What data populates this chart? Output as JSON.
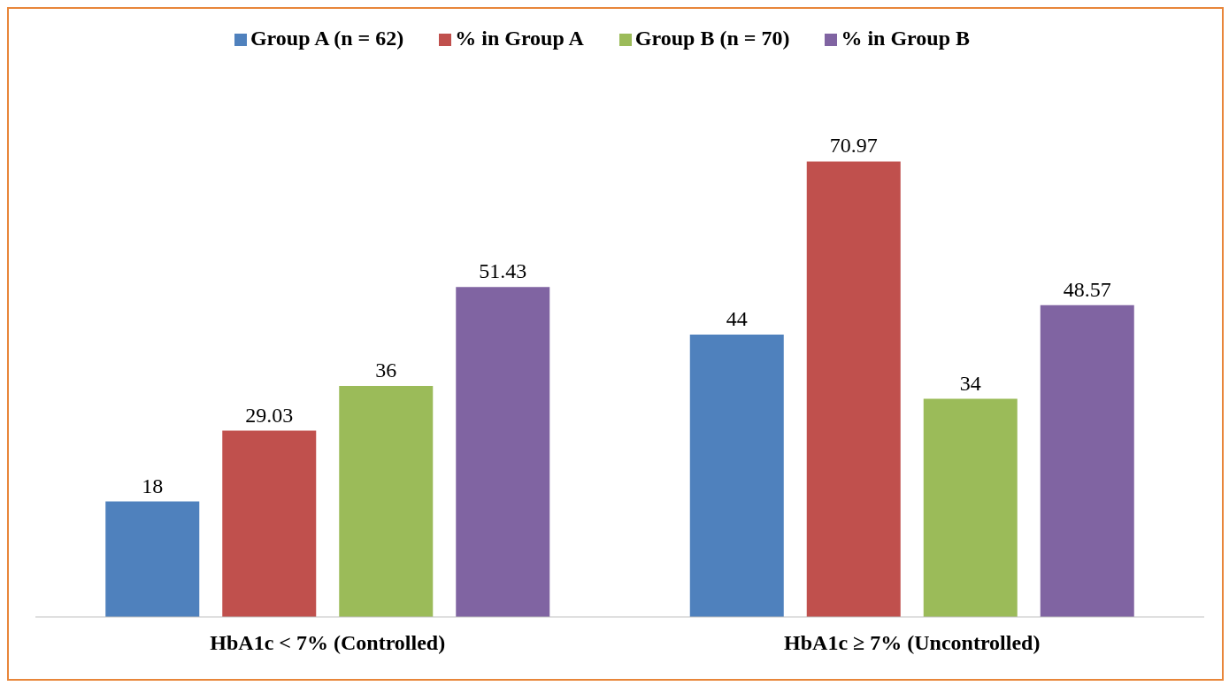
{
  "chart_data": {
    "type": "bar",
    "categories": [
      "HbA1c < 7% (Controlled)",
      "HbA1c ≥ 7% (Uncontrolled)"
    ],
    "series": [
      {
        "name": "Group A (n = 62)",
        "color": "#4f81bd",
        "values": [
          18,
          44
        ]
      },
      {
        "name": "% in Group A",
        "color": "#c0504d",
        "values": [
          29.03,
          70.97
        ]
      },
      {
        "name": "Group B (n = 70)",
        "color": "#9bbb59",
        "values": [
          36,
          34
        ]
      },
      {
        "name": "% in Group B",
        "color": "#8064a2",
        "values": [
          51.43,
          48.57
        ]
      }
    ],
    "data_labels": true,
    "legend": "top",
    "grid": false
  }
}
